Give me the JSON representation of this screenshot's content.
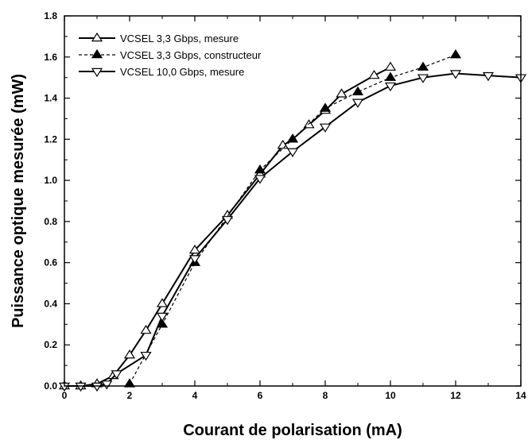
{
  "chart_data": {
    "type": "line",
    "title": "",
    "xlabel": "Courant de polarisation (mA)",
    "ylabel": "Puissance optique mesurée (mW)",
    "xlim": [
      0,
      14
    ],
    "ylim": [
      0,
      1.8
    ],
    "x_ticks": [
      "0",
      "2",
      "4",
      "6",
      "8",
      "10",
      "12",
      "14"
    ],
    "y_ticks": [
      "0.0",
      "0.2",
      "0.4",
      "0.6",
      "0.8",
      "1.0",
      "1.2",
      "1.4",
      "1.6",
      "1.8"
    ],
    "grid": false,
    "legend_position": "top-left",
    "series": [
      {
        "name": "VCSEL 3,3 Gbps, mesure",
        "marker": "triangle-up-open",
        "line": "solid",
        "x": [
          0,
          0.5,
          1,
          1.5,
          2,
          2.5,
          3,
          4,
          5,
          6,
          6.7,
          7,
          7.5,
          8,
          8.5,
          9.5,
          10
        ],
        "y": [
          0,
          0,
          0.01,
          0.05,
          0.15,
          0.27,
          0.4,
          0.66,
          0.83,
          1.03,
          1.17,
          1.2,
          1.27,
          1.34,
          1.42,
          1.51,
          1.55
        ]
      },
      {
        "name": "VCSEL 3,3 Gbps, constructeur",
        "marker": "triangle-up-filled",
        "line": "dashed",
        "x": [
          2,
          3,
          4,
          6,
          7,
          8,
          9,
          10,
          11,
          12
        ],
        "y": [
          0.01,
          0.3,
          0.6,
          1.05,
          1.2,
          1.35,
          1.43,
          1.5,
          1.55,
          1.61
        ]
      },
      {
        "name": "VCSEL 10,0 Gbps, mesure",
        "marker": "triangle-down-open",
        "line": "solid",
        "x": [
          0,
          0.5,
          1,
          1.3,
          1.6,
          2.5,
          3,
          4,
          5,
          6,
          7,
          8,
          9,
          10,
          11,
          12,
          13,
          14
        ],
        "y": [
          0,
          0,
          0,
          0.01,
          0.06,
          0.15,
          0.34,
          0.62,
          0.81,
          1.01,
          1.14,
          1.26,
          1.38,
          1.46,
          1.5,
          1.52,
          1.51,
          1.5
        ]
      }
    ]
  }
}
